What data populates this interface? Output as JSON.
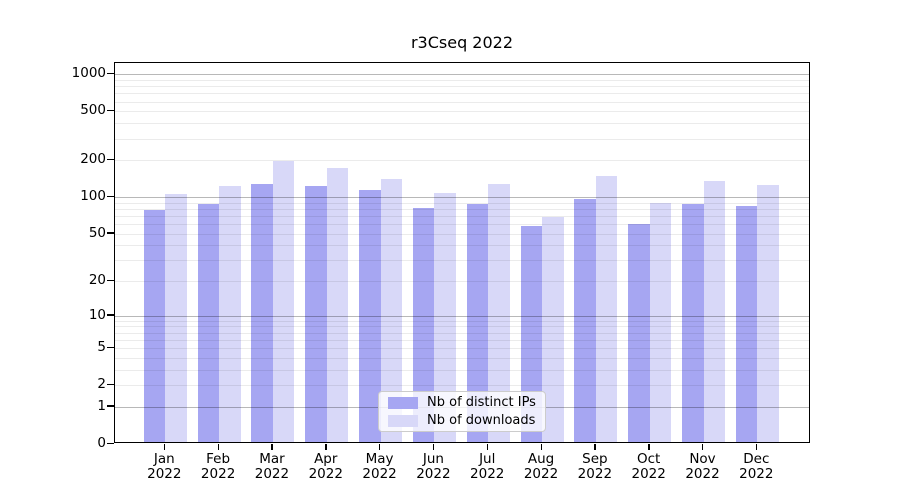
{
  "title": "r3Cseq 2022",
  "chart_data": {
    "type": "bar",
    "title": "r3Cseq 2022",
    "categories": [
      "Jan",
      "Feb",
      "Mar",
      "Apr",
      "May",
      "Jun",
      "Jul",
      "Aug",
      "Sep",
      "Oct",
      "Nov",
      "Dec"
    ],
    "x_year": "2022",
    "series": [
      {
        "name": "Nb of distinct IPs",
        "color": "#a6a6f2",
        "values": [
          78,
          88,
          127,
          123,
          114,
          81,
          88,
          58,
          97,
          60,
          87,
          84
        ]
      },
      {
        "name": "Nb of downloads",
        "color": "#d8d8f8",
        "values": [
          106,
          123,
          199,
          173,
          140,
          109,
          129,
          69,
          148,
          90,
          135,
          126
        ]
      }
    ],
    "y_ticks": [
      0,
      1,
      2,
      5,
      10,
      20,
      50,
      100,
      200,
      500,
      1000
    ],
    "y_major_gridlines": [
      1,
      10,
      100,
      1000
    ],
    "y_scale": "log10(1+v)",
    "ylim": [
      0,
      1238
    ],
    "xlabel": "",
    "ylabel": "",
    "grid": "horizontal major and minor gridlines",
    "legend_position": "inside bottom center"
  }
}
